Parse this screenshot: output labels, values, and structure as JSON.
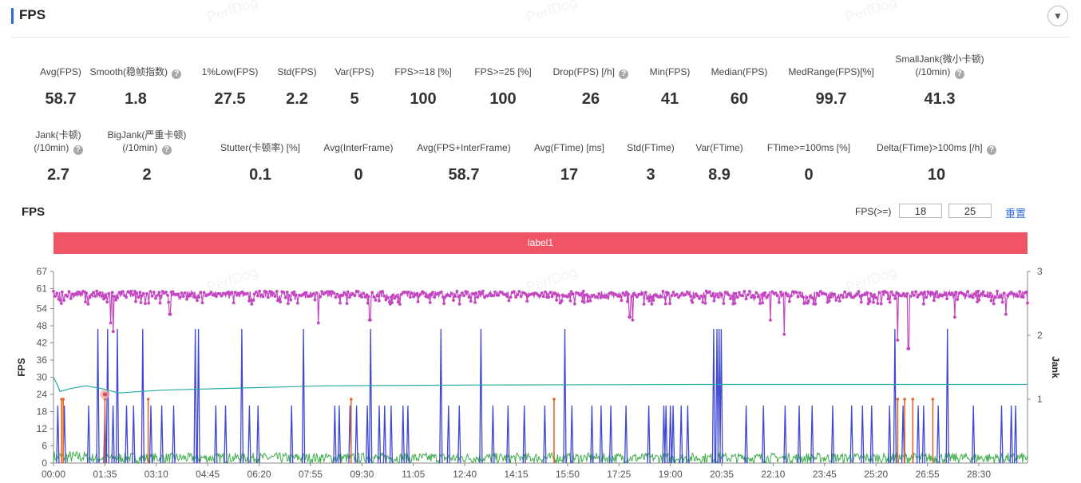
{
  "header": {
    "title": "FPS",
    "collapse_icon": "chevron-down-icon"
  },
  "watermark": "PerfDog",
  "metrics_row1": [
    {
      "label": "Avg(FPS)",
      "value": "58.7",
      "help": false
    },
    {
      "label": "Smooth(稳帧指数)",
      "value": "1.8",
      "help": true
    },
    {
      "label": "1%Low(FPS)",
      "value": "27.5",
      "help": false
    },
    {
      "label": "Std(FPS)",
      "value": "2.2",
      "help": false
    },
    {
      "label": "Var(FPS)",
      "value": "5",
      "help": false
    },
    {
      "label": "FPS>=18 [%]",
      "value": "100",
      "help": false
    },
    {
      "label": "FPS>=25 [%]",
      "value": "100",
      "help": false
    },
    {
      "label": "Drop(FPS) [/h]",
      "value": "26",
      "help": true
    },
    {
      "label": "Min(FPS)",
      "value": "41",
      "help": false
    },
    {
      "label": "Median(FPS)",
      "value": "60",
      "help": false
    },
    {
      "label": "MedRange(FPS)[%]",
      "value": "99.7",
      "help": false
    },
    {
      "label": "SmallJank(微小卡顿)",
      "label2": "(/10min)",
      "value": "41.3",
      "help": true
    }
  ],
  "metrics_row2": [
    {
      "label": "Jank(卡顿)",
      "label2": "(/10min)",
      "value": "2.7",
      "help": true
    },
    {
      "label": "BigJank(严重卡顿)",
      "label2": "(/10min)",
      "value": "2",
      "help": true
    },
    {
      "label": "Stutter(卡顿率) [%]",
      "value": "0.1",
      "help": false
    },
    {
      "label": "Avg(InterFrame)",
      "value": "0",
      "help": false
    },
    {
      "label": "Avg(FPS+InterFrame)",
      "value": "58.7",
      "help": false
    },
    {
      "label": "Avg(FTime) [ms]",
      "value": "17",
      "help": false
    },
    {
      "label": "Std(FTime)",
      "value": "3",
      "help": false
    },
    {
      "label": "Var(FTime)",
      "value": "8.9",
      "help": false
    },
    {
      "label": "FTime>=100ms [%]",
      "value": "0",
      "help": false
    },
    {
      "label": "Delta(FTime)>100ms [/h]",
      "value": "10",
      "help": true
    }
  ],
  "chart_section": {
    "title": "FPS",
    "threshold_label": "FPS(>=)",
    "threshold1": "18",
    "threshold2": "25",
    "reset_label": "重置",
    "label_bar": "label1"
  },
  "chart_data": {
    "type": "line",
    "ylabel": "FPS",
    "ylabel_right": "Jank",
    "ylim": [
      0,
      67
    ],
    "yticks": [
      0,
      6,
      12,
      18,
      24,
      30,
      36,
      42,
      48,
      54,
      61,
      67
    ],
    "ylim_right": [
      0,
      3
    ],
    "yticks_right": [
      1,
      2,
      3
    ],
    "x_duration_seconds": 1800,
    "xticks": [
      "00:00",
      "01:35",
      "03:10",
      "04:45",
      "06:20",
      "07:55",
      "09:30",
      "11:05",
      "12:40",
      "14:15",
      "15:50",
      "17:25",
      "19:00",
      "20:35",
      "22:10",
      "23:45",
      "25:20",
      "26:55",
      "28:30"
    ],
    "grid": false,
    "colors": {
      "fps": "#c447c2",
      "avg": "#26aba0",
      "jank": "#3e48d2",
      "bigjank": "#e36a2a",
      "small": "#3fae49",
      "axis": "#888888"
    },
    "series": [
      {
        "key": "fps",
        "baseline": 59,
        "dips": [
          [
            105,
            49
          ],
          [
            110,
            46
          ],
          [
            215,
            52
          ],
          [
            490,
            49
          ],
          [
            585,
            50
          ],
          [
            1065,
            51
          ],
          [
            1070,
            50
          ],
          [
            1325,
            50
          ],
          [
            1350,
            45
          ],
          [
            1560,
            43
          ],
          [
            1580,
            40
          ],
          [
            1665,
            51
          ],
          [
            1760,
            52
          ]
        ]
      },
      {
        "key": "avg",
        "points": [
          [
            0,
            30
          ],
          [
            8,
            27
          ],
          [
            12,
            25
          ],
          [
            30,
            26
          ],
          [
            60,
            27
          ],
          [
            90,
            26
          ],
          [
            120,
            24.5
          ],
          [
            200,
            25.5
          ],
          [
            300,
            26
          ],
          [
            500,
            27
          ],
          [
            800,
            27.3
          ],
          [
            1200,
            27.5
          ],
          [
            1800,
            27.5
          ]
        ]
      },
      {
        "key": "jank",
        "spikes": [
          [
            8,
            0.9
          ],
          [
            20,
            0.9
          ],
          [
            65,
            0.9
          ],
          [
            82,
            2.1
          ],
          [
            95,
            0.9
          ],
          [
            100,
            2.1
          ],
          [
            110,
            0.9
          ],
          [
            118,
            2.1
          ],
          [
            135,
            0.9
          ],
          [
            148,
            0.9
          ],
          [
            165,
            2.1
          ],
          [
            180,
            0.9
          ],
          [
            200,
            0.9
          ],
          [
            222,
            0.9
          ],
          [
            262,
            2.1
          ],
          [
            268,
            2.1
          ],
          [
            300,
            0.9
          ],
          [
            318,
            0.9
          ],
          [
            348,
            2.1
          ],
          [
            362,
            0.9
          ],
          [
            378,
            0.9
          ],
          [
            440,
            0.9
          ],
          [
            462,
            2.1
          ],
          [
            520,
            0.9
          ],
          [
            528,
            0.9
          ],
          [
            548,
            0.9
          ],
          [
            560,
            0.9
          ],
          [
            580,
            0.9
          ],
          [
            586,
            2.1
          ],
          [
            602,
            0.9
          ],
          [
            612,
            0.9
          ],
          [
            624,
            0.9
          ],
          [
            646,
            0.9
          ],
          [
            655,
            0.9
          ],
          [
            716,
            2.1
          ],
          [
            730,
            0.9
          ],
          [
            750,
            0.9
          ],
          [
            790,
            2.1
          ],
          [
            812,
            0.9
          ],
          [
            840,
            0.9
          ],
          [
            870,
            0.9
          ],
          [
            908,
            0.9
          ],
          [
            945,
            2.1
          ],
          [
            958,
            0.9
          ],
          [
            995,
            0.9
          ],
          [
            1012,
            0.9
          ],
          [
            1030,
            0.9
          ],
          [
            1058,
            0.9
          ],
          [
            1100,
            0.9
          ],
          [
            1128,
            0.9
          ],
          [
            1132,
            0.9
          ],
          [
            1140,
            0.9
          ],
          [
            1145,
            0.9
          ],
          [
            1160,
            0.9
          ],
          [
            1172,
            0.9
          ],
          [
            1220,
            2.1
          ],
          [
            1226,
            2.1
          ],
          [
            1230,
            2.1
          ],
          [
            1234,
            2.1
          ],
          [
            1280,
            0.9
          ],
          [
            1312,
            0.9
          ],
          [
            1352,
            0.9
          ],
          [
            1378,
            0.9
          ],
          [
            1402,
            0.9
          ],
          [
            1440,
            0.9
          ],
          [
            1475,
            0.9
          ],
          [
            1495,
            0.9
          ],
          [
            1512,
            0.9
          ],
          [
            1545,
            0.9
          ],
          [
            1555,
            2.1
          ],
          [
            1570,
            0.9
          ],
          [
            1598,
            0.9
          ],
          [
            1608,
            0.9
          ],
          [
            1635,
            0.9
          ],
          [
            1652,
            2.1
          ],
          [
            1700,
            0.9
          ],
          [
            1752,
            0.9
          ],
          [
            1770,
            0.9
          ],
          [
            1778,
            0.9
          ]
        ]
      },
      {
        "key": "bigjank",
        "spikes": [
          [
            15,
            1.0
          ],
          [
            18,
            1.0
          ],
          [
            95,
            1.0
          ],
          [
            175,
            1.0
          ],
          [
            550,
            1.0
          ],
          [
            925,
            1.0
          ],
          [
            1560,
            1.0
          ],
          [
            1573,
            1.0
          ],
          [
            1588,
            1.0
          ],
          [
            1625,
            1.0
          ]
        ]
      },
      {
        "key": "small",
        "max": 0.16
      }
    ],
    "marker": [
      95,
      24
    ]
  }
}
